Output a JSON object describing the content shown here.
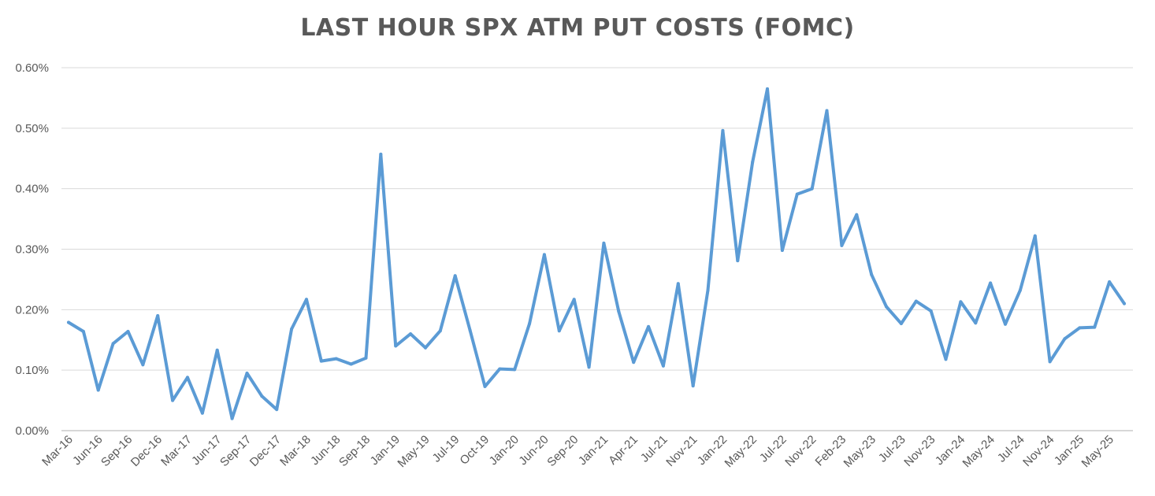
{
  "chart_data": {
    "type": "line",
    "title": "LAST HOUR SPX ATM PUT COSTS (FOMC)",
    "xlabel": "",
    "ylabel": "",
    "ylim": [
      0,
      0.006
    ],
    "y_ticks": [
      "0.00%",
      "0.10%",
      "0.20%",
      "0.30%",
      "0.40%",
      "0.50%",
      "0.60%"
    ],
    "y_tick_values": [
      0,
      0.001,
      0.002,
      0.003,
      0.004,
      0.005,
      0.006
    ],
    "grid": true,
    "legend": "none",
    "line_color": "#5b9bd5",
    "x_tick_labels": [
      "Mar-16",
      "Jun-16",
      "Sep-16",
      "Dec-16",
      "Mar-17",
      "Jun-17",
      "Sep-17",
      "Dec-17",
      "Mar-18",
      "Jun-18",
      "Sep-18",
      "Jan-19",
      "May-19",
      "Jul-19",
      "Oct-19",
      "Jan-20",
      "Jun-20",
      "Sep-20",
      "Jan-21",
      "Apr-21",
      "Jul-21",
      "Nov-21",
      "Jan-22",
      "May-22",
      "Jul-22",
      "Nov-22",
      "Feb-23",
      "May-23",
      "Jul-23",
      "Nov-23",
      "Jan-24",
      "May-24",
      "Jul-24",
      "Nov-24",
      "Jan-25",
      "May-25"
    ],
    "x_tick_indices": [
      0,
      2,
      4,
      6,
      8,
      10,
      12,
      14,
      16,
      18,
      20,
      22,
      24,
      26,
      28,
      30,
      32,
      34,
      36,
      38,
      40,
      42,
      44,
      46,
      48,
      50,
      52,
      54,
      56,
      58,
      60,
      62,
      64,
      66,
      68,
      70
    ],
    "series": [
      {
        "values": [
          0.00179,
          0.00164,
          0.00067,
          0.00144,
          0.00164,
          0.00109,
          0.0019,
          0.0005,
          0.00088,
          0.00029,
          0.00133,
          0.0002,
          0.00095,
          0.00057,
          0.00035,
          0.00168,
          0.00217,
          0.00115,
          0.00119,
          0.0011,
          0.0012,
          0.00457,
          0.0014,
          0.0016,
          0.00137,
          0.00165,
          0.00256,
          0.00166,
          0.00073,
          0.00102,
          0.00101,
          0.00177,
          0.00291,
          0.00165,
          0.00217,
          0.00105,
          0.0031,
          0.00197,
          0.00113,
          0.00172,
          0.00107,
          0.00243,
          0.00074,
          0.00232,
          0.00496,
          0.00281,
          0.00444,
          0.00565,
          0.00298,
          0.00391,
          0.004,
          0.00529,
          0.00306,
          0.00357,
          0.00258,
          0.00205,
          0.00177,
          0.00214,
          0.00198,
          0.00118,
          0.00213,
          0.00178,
          0.00244,
          0.00176,
          0.00232,
          0.00322,
          0.00114,
          0.00152,
          0.0017,
          0.00171,
          0.00246,
          0.0021
        ]
      }
    ]
  }
}
